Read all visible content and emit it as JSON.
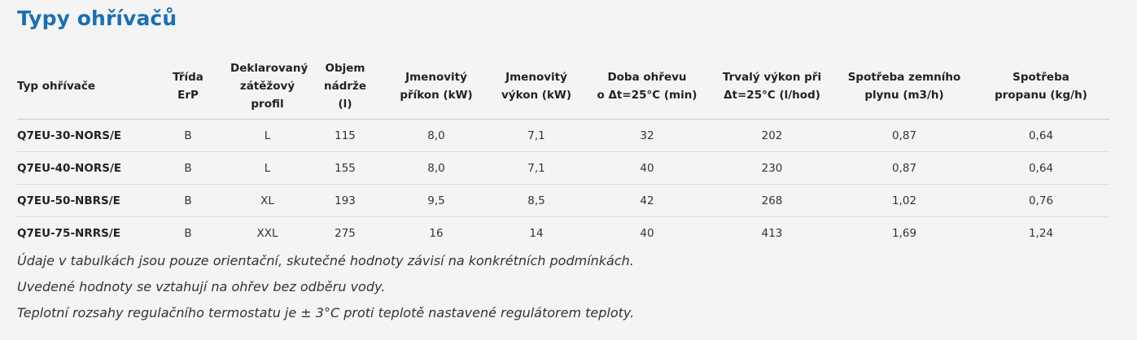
{
  "title": "Typy ohřívačů",
  "table": {
    "headers": [
      [
        "Typ ohřívače"
      ],
      [
        "Třída",
        "ErP"
      ],
      [
        "Deklarovaný",
        "zátěžový profil"
      ],
      [
        "Objem",
        "nádrže",
        "(l)"
      ],
      [
        "Jmenovitý",
        "příkon (kW)"
      ],
      [
        "Jmenovitý",
        "výkon (kW)"
      ],
      [
        "Doba ohřevu",
        "o Δt=25°C (min)"
      ],
      [
        "Trvalý výkon při",
        "Δt=25°C (l/hod)"
      ],
      [
        "Spotřeba zemního",
        "plynu (m3/h)"
      ],
      [
        "Spotřeba",
        "propanu (kg/h)"
      ]
    ],
    "rows": [
      [
        "Q7EU-30-NORS/E",
        "B",
        "L",
        "115",
        "8,0",
        "7,1",
        "32",
        "202",
        "0,87",
        "0,64"
      ],
      [
        "Q7EU-40-NORS/E",
        "B",
        "L",
        "155",
        "8,0",
        "7,1",
        "40",
        "230",
        "0,87",
        "0,64"
      ],
      [
        "Q7EU-50-NBRS/E",
        "B",
        "XL",
        "193",
        "9,5",
        "8,5",
        "42",
        "268",
        "1,02",
        "0,76"
      ],
      [
        "Q7EU-75-NRRS/E",
        "B",
        "XXL",
        "275",
        "16",
        "14",
        "40",
        "413",
        "1,69",
        "1,24"
      ]
    ]
  },
  "notes": [
    "Údaje v tabulkách jsou pouze orientační, skutečné hodnoty závisí na konkrétních podmínkách.",
    "Uvedené hodnoty se vztahují na ohřev bez odběru vody.",
    "Teplotní rozsahy regulačního termostatu je ± 3°C proti teplotě nastavené regulátorem teploty."
  ]
}
